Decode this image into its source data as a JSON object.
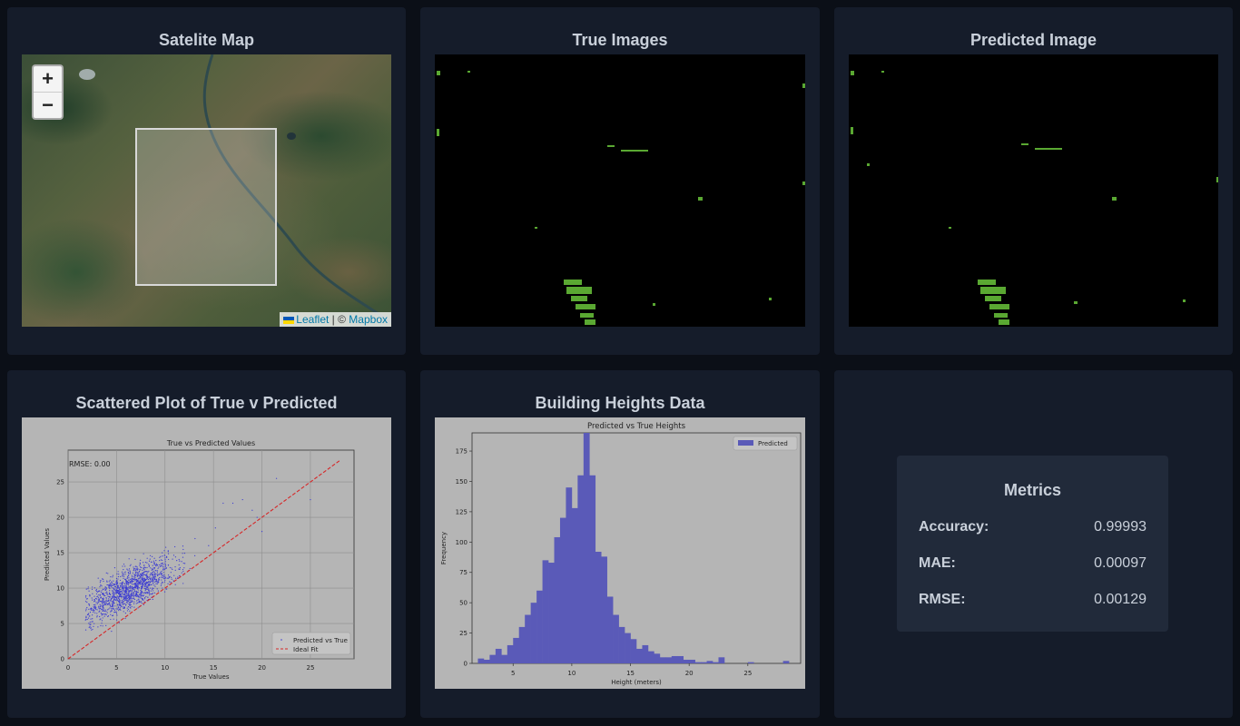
{
  "cards": {
    "map_title": "Satelite Map",
    "true_title": "True Images",
    "pred_title": "Predicted Image",
    "scatter_title": "Scattered Plot of True v Predicted",
    "heights_title": "Building Heights Data"
  },
  "map": {
    "zoom_in": "+",
    "zoom_out": "−",
    "attribution_leaflet": "Leaflet",
    "attribution_sep": " | © ",
    "attribution_mapbox": "Mapbox"
  },
  "metrics": {
    "title": "Metrics",
    "rows": [
      {
        "label": "Accuracy:",
        "value": "0.99993"
      },
      {
        "label": "MAE:",
        "value": "0.00097"
      },
      {
        "label": "RMSE:",
        "value": "0.00129"
      }
    ]
  },
  "chart_data": [
    {
      "type": "scatter",
      "title": "True vs Predicted Values",
      "xlabel": "True Values",
      "ylabel": "Predicted Values",
      "xlim": [
        0,
        29.5
      ],
      "ylim": [
        0,
        29.5
      ],
      "xticks": [
        0,
        5,
        10,
        15,
        20,
        25
      ],
      "yticks": [
        0,
        5,
        10,
        15,
        20,
        25
      ],
      "grid": true,
      "annotation": "RMSE: 0.00",
      "series": [
        {
          "name": "Predicted vs True",
          "color": "#3c3cd2",
          "cluster_center": [
            6.5,
            10
          ],
          "spread": "dense cluster 2–16 true, 4–18 predicted"
        },
        {
          "name": "Ideal Fit",
          "color": "#d62728",
          "line": [
            [
              0,
              0
            ],
            [
              28,
              28
            ]
          ]
        }
      ],
      "legend": "bottom-right"
    },
    {
      "type": "bar",
      "title": "Predicted vs True Heights",
      "xlabel": "Height (meters)",
      "ylabel": "Frequency",
      "ylim": [
        0,
        190
      ],
      "xlim": [
        1.5,
        29.5
      ],
      "xticks": [
        5,
        10,
        15,
        20,
        25
      ],
      "yticks": [
        0,
        25,
        50,
        75,
        100,
        125,
        150,
        175
      ],
      "legend": "top-right",
      "series": [
        {
          "name": "Predicted",
          "color": "#5a5ab8",
          "bin_width": 0.5,
          "bin_start": 2.0,
          "values": [
            4,
            3,
            7,
            12,
            7,
            15,
            21,
            30,
            40,
            50,
            60,
            85,
            83,
            104,
            120,
            145,
            128,
            155,
            190,
            155,
            92,
            88,
            55,
            40,
            30,
            25,
            20,
            12,
            15,
            10,
            8,
            5,
            5,
            6,
            6,
            3,
            3,
            1,
            1,
            2,
            1,
            5,
            0,
            0,
            0,
            0,
            1,
            0,
            0,
            0,
            0,
            0,
            2
          ]
        }
      ]
    }
  ]
}
